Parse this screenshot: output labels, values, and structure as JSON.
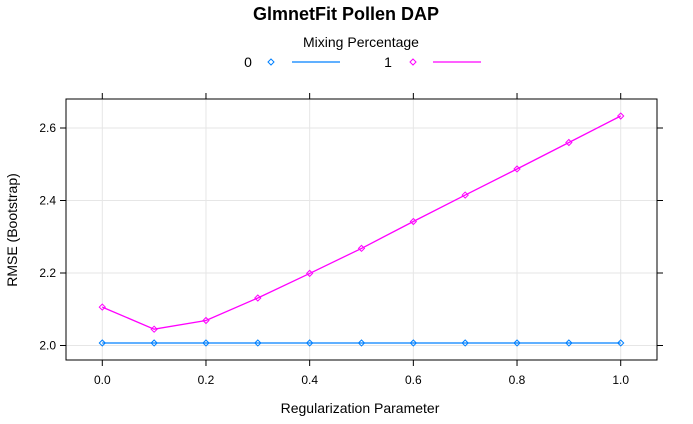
{
  "chart_data": {
    "type": "line",
    "title": "GlmnetFit Pollen DAP",
    "xlabel": "Regularization Parameter",
    "ylabel": "RMSE (Bootstrap)",
    "xlim": [
      -0.07,
      1.07
    ],
    "ylim": [
      1.96,
      2.68
    ],
    "x_ticks": [
      0.0,
      0.2,
      0.4,
      0.6,
      0.8,
      1.0
    ],
    "x_tick_labels": [
      "0.0",
      "0.2",
      "0.4",
      "0.6",
      "0.8",
      "1.0"
    ],
    "y_ticks": [
      2.0,
      2.2,
      2.4,
      2.6
    ],
    "y_tick_labels": [
      "2.0",
      "2.2",
      "2.4",
      "2.6"
    ],
    "grid": true,
    "legend": {
      "title": "Mixing Percentage",
      "placement": "top"
    },
    "x": [
      0.0,
      0.1,
      0.2,
      0.3,
      0.4,
      0.5,
      0.6,
      0.7,
      0.8,
      0.9,
      1.0
    ],
    "series": [
      {
        "name": "0",
        "color": "#0080ff",
        "marker": "diamond-open",
        "values": [
          2.007,
          2.007,
          2.007,
          2.007,
          2.007,
          2.007,
          2.007,
          2.007,
          2.007,
          2.007,
          2.007
        ]
      },
      {
        "name": "1",
        "color": "#ff00ff",
        "marker": "diamond-open",
        "values": [
          2.106,
          2.045,
          2.069,
          2.131,
          2.199,
          2.268,
          2.342,
          2.415,
          2.487,
          2.56,
          2.633
        ]
      }
    ]
  }
}
